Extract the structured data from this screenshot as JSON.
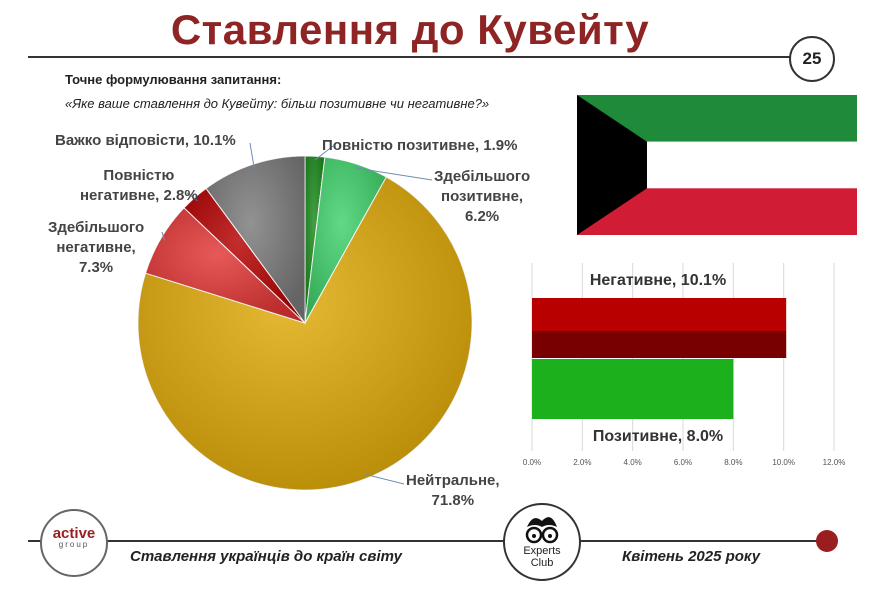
{
  "header": {
    "title": "Ставлення до Кувейту",
    "page_number": "25"
  },
  "question": {
    "label": "Точне формулювання запитання:",
    "text": "«Яке ваше ставлення до Кувейту: більш позитивне чи негативне?»"
  },
  "chart_data": [
    {
      "type": "pie",
      "slices": [
        {
          "label_lines": [
            "Повністю позитивне, 1.9%"
          ],
          "value": 1.9,
          "color": "#1a8a1a"
        },
        {
          "label_lines": [
            "Здебільшого",
            "позитивне,",
            "6.2%"
          ],
          "value": 6.2,
          "color": "#3fd06a"
        },
        {
          "label_lines": [
            "Нейтральне,",
            "71.8%"
          ],
          "value": 71.8,
          "color": "#e0aa08"
        },
        {
          "label_lines": [
            "Здебільшого",
            "негативне,",
            "7.3%"
          ],
          "value": 7.3,
          "color": "#e23535"
        },
        {
          "label_lines": [
            "Повністю",
            "негативне, 2.8%"
          ],
          "value": 2.8,
          "color": "#b50000"
        },
        {
          "label_lines": [
            "Важко відповісти, 10.1%"
          ],
          "value": 10.1,
          "color": "#7a7a7a"
        }
      ]
    },
    {
      "type": "bar",
      "orientation": "horizontal",
      "bars": [
        {
          "label": "Негативне, 10.1%",
          "value": 10.1,
          "color": "#b80000"
        },
        {
          "label": "Позитивне, 8.0%",
          "value": 8.0,
          "color": "#1cb01c"
        }
      ],
      "xlim": [
        0,
        12
      ],
      "x_ticks": [
        "0.0%",
        "2.0%",
        "4.0%",
        "6.0%",
        "8.0%",
        "10.0%",
        "12.0%"
      ]
    }
  ],
  "flag": {
    "colors": {
      "green": "#1e8a3a",
      "white": "#ffffff",
      "red": "#d01c34",
      "black": "#000000"
    }
  },
  "footer": {
    "left_text": "Ставлення українців до країн світу",
    "right_text": "Квітень 2025 року",
    "logo_left_main": "active",
    "logo_left_sub": "group",
    "logo_right_line1": "Experts",
    "logo_right_line2": "Club"
  }
}
